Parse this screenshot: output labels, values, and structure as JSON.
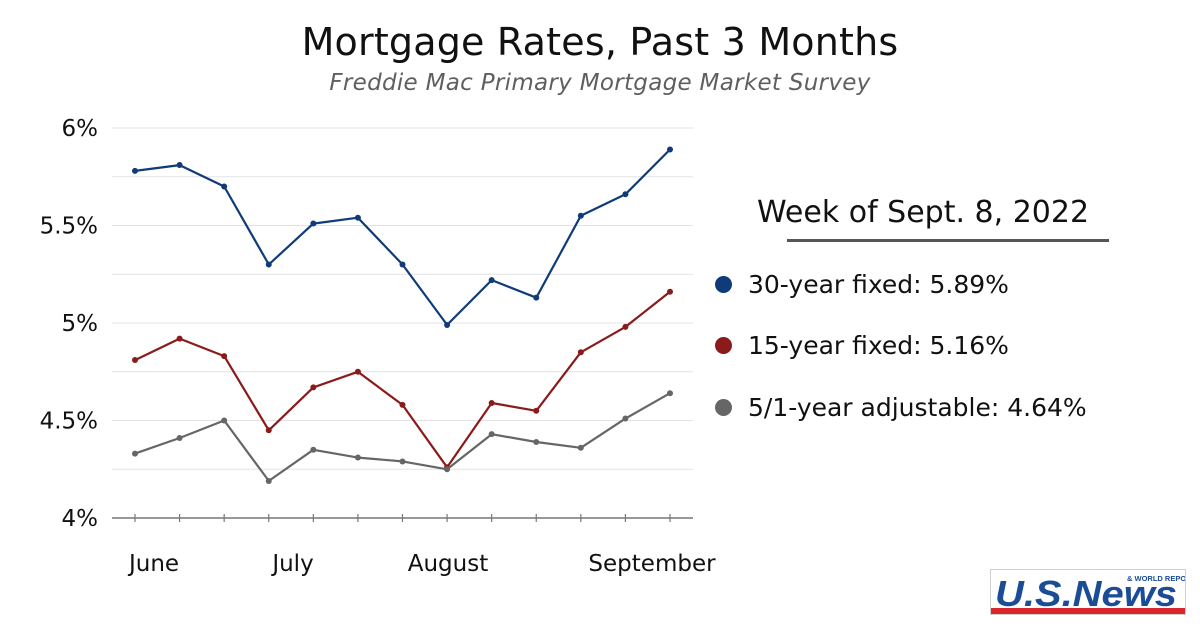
{
  "chart_data": {
    "type": "line",
    "title": "Mortgage Rates, Past 3 Months",
    "subtitle": "Freddie Mac Primary Mortgage Market Survey",
    "x_labels": [
      "June",
      "July",
      "August",
      "September"
    ],
    "x_label_weeks": [
      0,
      3,
      7,
      11
    ],
    "week_count": 13,
    "yticks": [
      "4%",
      "4.5%",
      "5%",
      "5.5%",
      "6%"
    ],
    "ytick_values": [
      4,
      4.5,
      5,
      5.5,
      6
    ],
    "ylim": [
      4,
      6
    ],
    "grid": true,
    "series": [
      {
        "name": "30-year fixed",
        "color": "#103b7a",
        "values": [
          5.78,
          5.81,
          5.7,
          5.3,
          5.51,
          5.54,
          5.3,
          4.99,
          5.22,
          5.13,
          5.55,
          5.66,
          5.89
        ]
      },
      {
        "name": "15-year fixed",
        "color": "#8b1a1a",
        "values": [
          4.81,
          4.92,
          4.83,
          4.45,
          4.67,
          4.75,
          4.58,
          4.26,
          4.59,
          4.55,
          4.85,
          4.98,
          5.16
        ]
      },
      {
        "name": "5/1-year adjustable",
        "color": "#666666",
        "values": [
          4.33,
          4.41,
          4.5,
          4.19,
          4.35,
          4.31,
          4.29,
          4.25,
          4.43,
          4.39,
          4.36,
          4.51,
          4.64
        ]
      }
    ]
  },
  "legend": {
    "heading": "Week of Sept. 8, 2022",
    "items": [
      {
        "label": "30-year fixed: 5.89%",
        "color": "#103b7a"
      },
      {
        "label": "15-year fixed: 5.16%",
        "color": "#8b1a1a"
      },
      {
        "label": "5/1-year adjustable: 4.64%",
        "color": "#666666"
      }
    ]
  },
  "logo": {
    "text": "U.S.News",
    "tagline": "& WORLD REPORT",
    "colors": {
      "blue": "#1b4c96",
      "red": "#d9252c"
    }
  }
}
